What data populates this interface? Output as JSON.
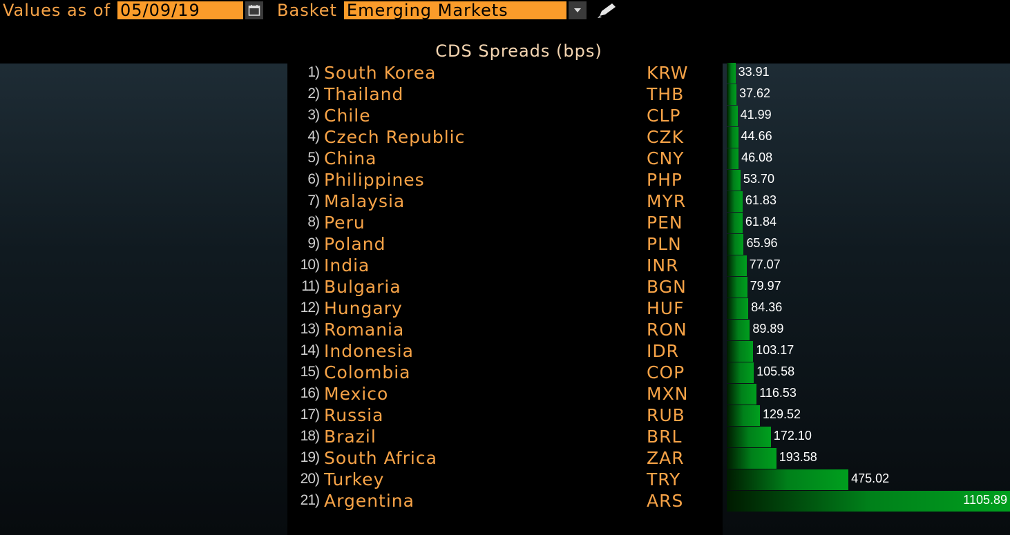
{
  "header": {
    "values_label": "Values as of",
    "date": "05/09/19",
    "basket_label": "Basket",
    "basket": "Emerging Markets",
    "calendar_icon": "calendar-icon",
    "dropdown_icon": "chevron-down-icon",
    "edit_icon": "pencil-icon"
  },
  "title": "CDS Spreads (bps)",
  "chart_data": {
    "type": "bar",
    "orientation": "horizontal",
    "title": "CDS Spreads (bps)",
    "xlim": [
      0,
      1105.89
    ],
    "rows": [
      {
        "rank": "1)",
        "country": "South Korea",
        "ccy": "KRW",
        "value": 33.91,
        "label": "33.91"
      },
      {
        "rank": "2)",
        "country": "Thailand",
        "ccy": "THB",
        "value": 37.62,
        "label": "37.62"
      },
      {
        "rank": "3)",
        "country": "Chile",
        "ccy": "CLP",
        "value": 41.99,
        "label": "41.99"
      },
      {
        "rank": "4)",
        "country": "Czech Republic",
        "ccy": "CZK",
        "value": 44.66,
        "label": "44.66"
      },
      {
        "rank": "5)",
        "country": "China",
        "ccy": "CNY",
        "value": 46.08,
        "label": "46.08"
      },
      {
        "rank": "6)",
        "country": "Philippines",
        "ccy": "PHP",
        "value": 53.7,
        "label": "53.70"
      },
      {
        "rank": "7)",
        "country": "Malaysia",
        "ccy": "MYR",
        "value": 61.83,
        "label": "61.83"
      },
      {
        "rank": "8)",
        "country": "Peru",
        "ccy": "PEN",
        "value": 61.84,
        "label": "61.84"
      },
      {
        "rank": "9)",
        "country": "Poland",
        "ccy": "PLN",
        "value": 65.96,
        "label": "65.96"
      },
      {
        "rank": "10)",
        "country": "India",
        "ccy": "INR",
        "value": 77.07,
        "label": "77.07"
      },
      {
        "rank": "11)",
        "country": "Bulgaria",
        "ccy": "BGN",
        "value": 79.97,
        "label": "79.97"
      },
      {
        "rank": "12)",
        "country": "Hungary",
        "ccy": "HUF",
        "value": 84.36,
        "label": "84.36"
      },
      {
        "rank": "13)",
        "country": "Romania",
        "ccy": "RON",
        "value": 89.89,
        "label": "89.89"
      },
      {
        "rank": "14)",
        "country": "Indonesia",
        "ccy": "IDR",
        "value": 103.17,
        "label": "103.17"
      },
      {
        "rank": "15)",
        "country": "Colombia",
        "ccy": "COP",
        "value": 105.58,
        "label": "105.58"
      },
      {
        "rank": "16)",
        "country": "Mexico",
        "ccy": "MXN",
        "value": 116.53,
        "label": "116.53"
      },
      {
        "rank": "17)",
        "country": "Russia",
        "ccy": "RUB",
        "value": 129.52,
        "label": "129.52"
      },
      {
        "rank": "18)",
        "country": "Brazil",
        "ccy": "BRL",
        "value": 172.1,
        "label": "172.10"
      },
      {
        "rank": "19)",
        "country": "South Africa",
        "ccy": "ZAR",
        "value": 193.58,
        "label": "193.58"
      },
      {
        "rank": "20)",
        "country": "Turkey",
        "ccy": "TRY",
        "value": 475.02,
        "label": "475.02"
      },
      {
        "rank": "21)",
        "country": "Argentina",
        "ccy": "ARS",
        "value": 1105.89,
        "label": "1105.89"
      }
    ]
  }
}
